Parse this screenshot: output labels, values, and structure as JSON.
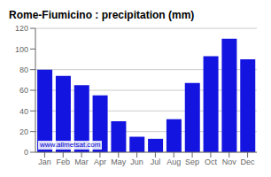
{
  "chart_data": {
    "type": "bar",
    "title": "Rome-Fiumicino : precipitation (mm)",
    "categories": [
      "Jan",
      "Feb",
      "Mar",
      "Apr",
      "May",
      "Jun",
      "Jul",
      "Aug",
      "Sep",
      "Oct",
      "Nov",
      "Dec"
    ],
    "values": [
      80,
      74,
      65,
      55,
      30,
      15,
      13,
      32,
      67,
      93,
      110,
      90
    ],
    "color": "#1414e0",
    "ylim": [
      0,
      120
    ],
    "yticks": [
      0,
      20,
      40,
      60,
      80,
      100,
      120
    ],
    "grid": true,
    "annotations": [
      "www.allmetsat.com"
    ]
  }
}
